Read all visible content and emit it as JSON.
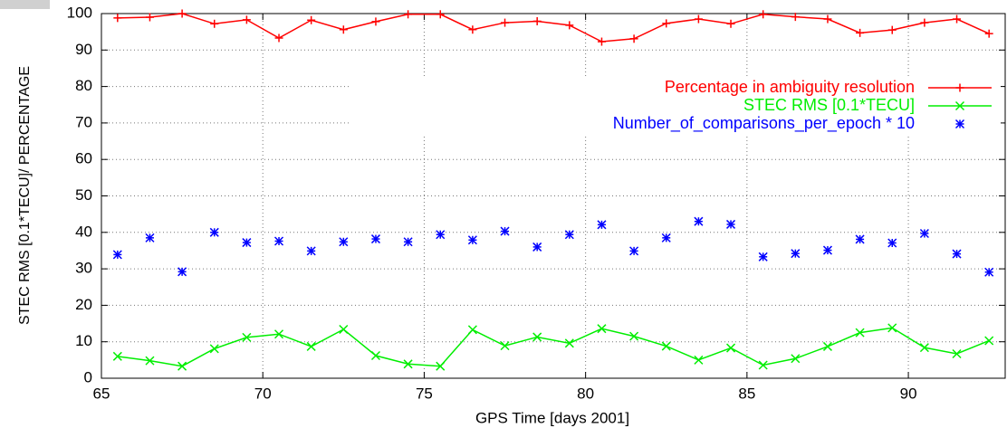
{
  "chart_data": {
    "type": "line",
    "xlabel": "GPS Time [days 2001]",
    "ylabel": "STEC RMS [0.1*TECU]/ PERCENTAGE",
    "x": [
      65.5,
      66.5,
      67.5,
      68.5,
      69.5,
      70.5,
      71.5,
      72.5,
      73.5,
      74.5,
      75.5,
      76.5,
      77.5,
      78.5,
      79.5,
      80.5,
      81.5,
      82.5,
      83.5,
      84.5,
      85.5,
      86.5,
      87.5,
      88.5,
      89.5,
      90.5,
      91.5,
      92.5
    ],
    "series": [
      {
        "name": "Percentage in ambiguity resolution",
        "color": "#ff0000",
        "marker": "+",
        "line": true,
        "values": [
          98.8,
          99,
          100,
          97.2,
          98.3,
          93.3,
          98.2,
          95.6,
          97.8,
          99.8,
          99.8,
          95.6,
          97.5,
          97.9,
          96.8,
          92.3,
          93.1,
          97.3,
          98.5,
          97.2,
          99.8,
          99.1,
          98.5,
          94.7,
          95.5,
          97.5,
          98.5,
          94.5
        ]
      },
      {
        "name": "STEC RMS [0.1*TECU]",
        "color": "#00ee00",
        "marker": "x",
        "line": true,
        "values": [
          6,
          4.8,
          3.3,
          8.1,
          11.2,
          12.1,
          8.7,
          13.4,
          6.2,
          3.9,
          3.3,
          13.3,
          8.9,
          11.3,
          9.6,
          13.6,
          11.5,
          8.8,
          5,
          8.3,
          3.6,
          5.4,
          8.7,
          12.5,
          13.8,
          8.4,
          6.7,
          10.3
        ]
      },
      {
        "name": "Number_of_comparisons_per_epoch * 10",
        "color": "#0000ff",
        "marker": "*",
        "line": false,
        "values": [
          33.9,
          38.5,
          29.2,
          40,
          37.2,
          37.6,
          34.9,
          37.4,
          38.2,
          37.4,
          39.4,
          37.9,
          40.3,
          36,
          39.4,
          42.1,
          34.9,
          38.5,
          43,
          42.2,
          33.3,
          34.2,
          35.1,
          38.1,
          37.1,
          39.7,
          34.1,
          29.1
        ]
      }
    ],
    "xlim": [
      65,
      93
    ],
    "xticks": [
      65,
      70,
      75,
      80,
      85,
      90
    ],
    "ylim": [
      0,
      100
    ],
    "yticks": [
      0,
      10,
      20,
      30,
      40,
      50,
      60,
      70,
      80,
      90,
      100
    ],
    "grid": true,
    "legend": "top-right"
  }
}
